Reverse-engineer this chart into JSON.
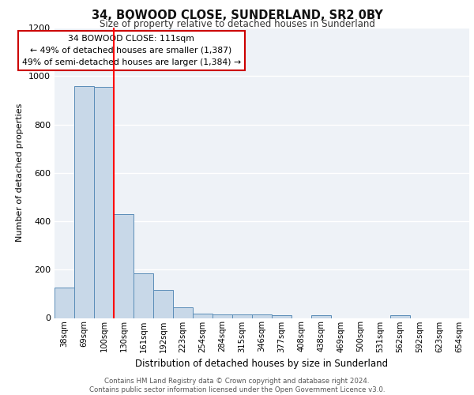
{
  "title1": "34, BOWOOD CLOSE, SUNDERLAND, SR2 0BY",
  "title2": "Size of property relative to detached houses in Sunderland",
  "xlabel": "Distribution of detached houses by size in Sunderland",
  "ylabel": "Number of detached properties",
  "categories": [
    "38sqm",
    "69sqm",
    "100sqm",
    "130sqm",
    "161sqm",
    "192sqm",
    "223sqm",
    "254sqm",
    "284sqm",
    "315sqm",
    "346sqm",
    "377sqm",
    "408sqm",
    "438sqm",
    "469sqm",
    "500sqm",
    "531sqm",
    "562sqm",
    "592sqm",
    "623sqm",
    "654sqm"
  ],
  "values": [
    125,
    960,
    955,
    430,
    185,
    115,
    45,
    18,
    15,
    15,
    15,
    10,
    0,
    10,
    0,
    0,
    0,
    10,
    0,
    0,
    0
  ],
  "bar_color": "#c8d8e8",
  "bar_edge_color": "#5b8db8",
  "red_line_x": 2.5,
  "annotation_text": "34 BOWOOD CLOSE: 111sqm\n← 49% of detached houses are smaller (1,387)\n49% of semi-detached houses are larger (1,384) →",
  "annotation_box_color": "#ffffff",
  "annotation_box_edge": "#cc0000",
  "footer": "Contains HM Land Registry data © Crown copyright and database right 2024.\nContains public sector information licensed under the Open Government Licence v3.0.",
  "ylim": [
    0,
    1200
  ],
  "background_color": "#eef2f7",
  "grid_color": "#ffffff",
  "fig_width": 6.0,
  "fig_height": 5.0,
  "fig_dpi": 100
}
